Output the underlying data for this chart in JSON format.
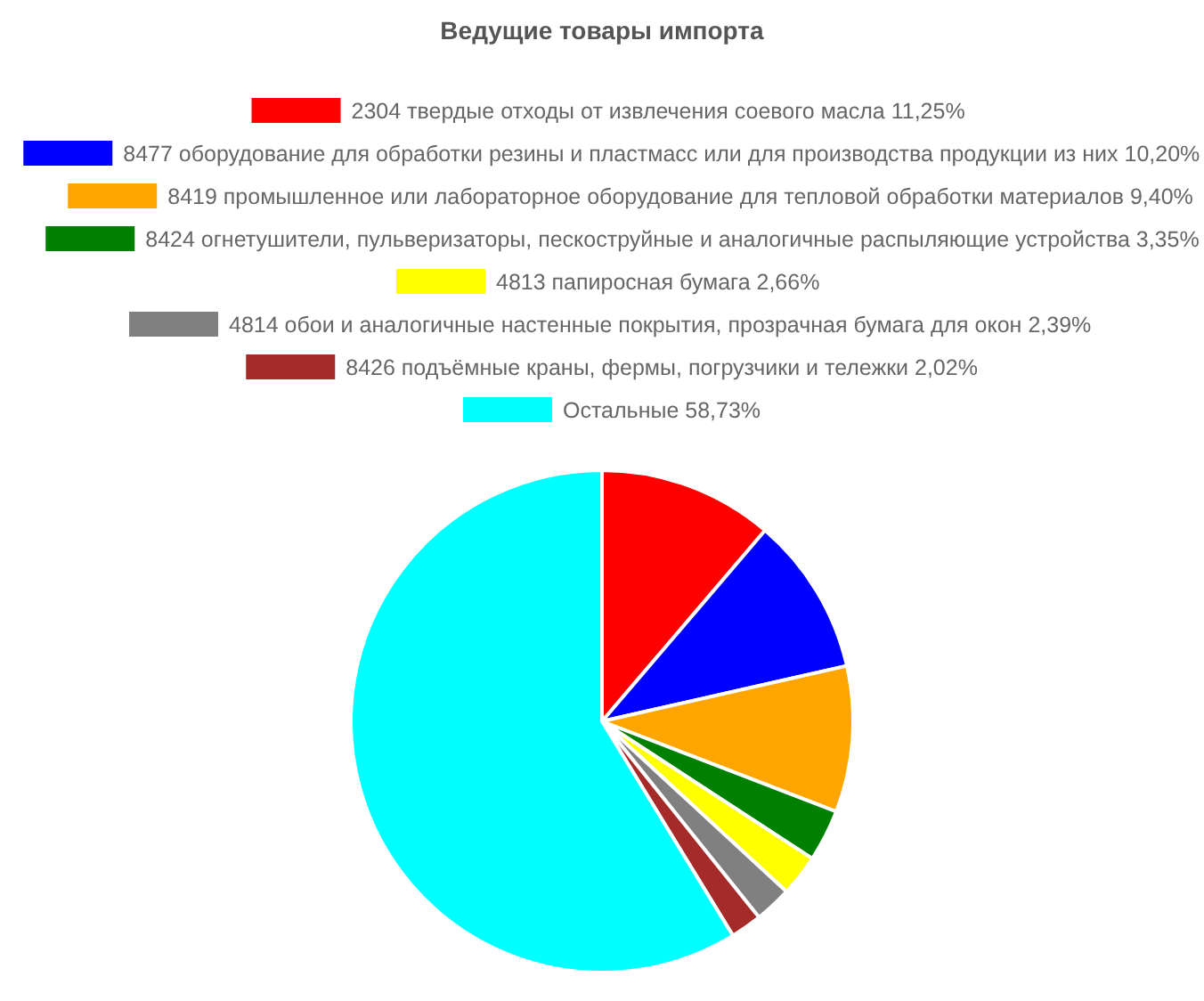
{
  "chart_data": {
    "type": "pie",
    "title": "Ведущие товары импорта",
    "legend": "top",
    "categories": [
      "2304 твердые отходы от извлечения соевого масла 11,25%",
      "8477 оборудование для обработки резины и пластмасс или для производства продукции из них 10,20%",
      "8419 промышленное или лабораторное оборудование для тепловой обработки материалов 9,40%",
      "8424 огнетушители, пульверизаторы, пескоструйные и аналогичные распыляющие устройства 3,35%",
      "4813 папиросная бумага 2,66%",
      "4814 обои и аналогичные настенные покрытия, прозрачная бумага для окон 2,39%",
      "8426 подъёмные краны, фермы, погрузчики и тележки 2,02%",
      "Остальные 58,73%"
    ],
    "values": [
      11.25,
      10.2,
      9.4,
      3.35,
      2.66,
      2.39,
      2.02,
      58.73
    ],
    "colors": [
      "#ff0000",
      "#0000ff",
      "#ffa500",
      "#008000",
      "#ffff00",
      "#808080",
      "#a52a2a",
      "#00ffff"
    ]
  }
}
